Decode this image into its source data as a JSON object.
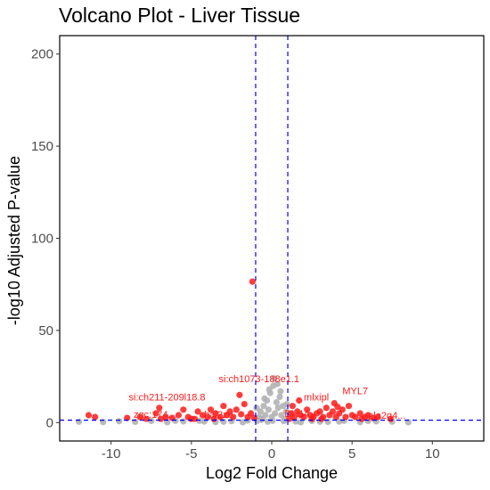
{
  "chart_data": {
    "type": "scatter",
    "title": "Volcano Plot - Liver Tissue",
    "xlabel": "Log2 Fold Change",
    "ylabel": "-log10 Adjusted P-value",
    "xlim": [
      -13.2,
      13.2
    ],
    "ylim": [
      -10,
      210
    ],
    "x_ticks": [
      -10,
      -5,
      0,
      5,
      10
    ],
    "y_ticks": [
      0,
      50,
      100,
      150,
      200
    ],
    "fc_thresholds": [
      -1,
      1
    ],
    "p_threshold": 1.3,
    "grid": false,
    "colors": {
      "significant": "#ff1a1a",
      "not_significant": "#b3b3b3",
      "threshold_line": "#0000ff"
    },
    "series": [
      {
        "status": "significant",
        "points": [
          [
            -1.2,
            76.5
          ],
          [
            -2.0,
            15.0
          ],
          [
            -11.4,
            4.0
          ],
          [
            -11.0,
            3.0
          ],
          [
            -9.0,
            2.5
          ],
          [
            -8.2,
            3.0
          ],
          [
            -7.8,
            2.0
          ],
          [
            -7.2,
            5.0
          ],
          [
            -7.0,
            8.0
          ],
          [
            -6.6,
            3.0
          ],
          [
            -6.2,
            2.5
          ],
          [
            -5.8,
            4.0
          ],
          [
            -5.5,
            7.0
          ],
          [
            -5.2,
            3.0
          ],
          [
            -4.8,
            2.0
          ],
          [
            -4.6,
            6.0
          ],
          [
            -4.3,
            4.0
          ],
          [
            -4.0,
            3.0
          ],
          [
            -3.8,
            7.0
          ],
          [
            -3.5,
            5.0
          ],
          [
            -3.2,
            3.0
          ],
          [
            -3.0,
            9.0
          ],
          [
            -2.8,
            4.0
          ],
          [
            -2.6,
            6.0
          ],
          [
            -2.4,
            3.0
          ],
          [
            -2.2,
            7.0
          ],
          [
            -1.9,
            4.5
          ],
          [
            -1.7,
            10.0
          ],
          [
            -1.5,
            3.0
          ],
          [
            -1.3,
            5.0
          ],
          [
            -1.1,
            2.5
          ],
          [
            -6.9,
            2.0
          ],
          [
            -5.0,
            2.0
          ],
          [
            -3.6,
            2.0
          ],
          [
            1.1,
            2.0
          ],
          [
            1.2,
            5.0
          ],
          [
            1.3,
            9.0
          ],
          [
            1.4,
            3.0
          ],
          [
            1.6,
            6.0
          ],
          [
            1.8,
            4.0
          ],
          [
            2.0,
            3.0
          ],
          [
            2.2,
            7.0
          ],
          [
            2.4,
            4.0
          ],
          [
            2.6,
            3.0
          ],
          [
            2.8,
            5.0
          ],
          [
            3.0,
            6.0
          ],
          [
            3.2,
            3.0
          ],
          [
            3.4,
            8.0
          ],
          [
            3.6,
            4.0
          ],
          [
            3.8,
            6.0
          ],
          [
            4.0,
            3.0
          ],
          [
            4.2,
            5.0
          ],
          [
            4.4,
            7.0
          ],
          [
            4.6,
            3.0
          ],
          [
            4.8,
            9.0
          ],
          [
            5.0,
            4.0
          ],
          [
            5.2,
            3.0
          ],
          [
            5.5,
            5.0
          ],
          [
            5.8,
            3.0
          ],
          [
            6.0,
            4.0
          ],
          [
            6.3,
            2.5
          ],
          [
            6.6,
            3.0
          ],
          [
            7.4,
            2.0
          ],
          [
            3.9,
            10.5
          ],
          [
            4.1,
            8.5
          ],
          [
            1.7,
            12.0
          ],
          [
            2.5,
            2.0
          ],
          [
            3.1,
            2.0
          ],
          [
            5.6,
            2.0
          ]
        ]
      },
      {
        "status": "not_significant",
        "points": [
          [
            -0.9,
            1.0
          ],
          [
            -0.8,
            3.0
          ],
          [
            -0.7,
            6.0
          ],
          [
            -0.6,
            2.0
          ],
          [
            -0.5,
            9.0
          ],
          [
            -0.4,
            4.0
          ],
          [
            -0.3,
            12.0
          ],
          [
            -0.2,
            7.0
          ],
          [
            -0.1,
            16.0
          ],
          [
            0.0,
            3.0
          ],
          [
            0.1,
            20.0
          ],
          [
            0.2,
            5.0
          ],
          [
            0.3,
            11.0
          ],
          [
            0.4,
            8.0
          ],
          [
            0.5,
            14.0
          ],
          [
            0.6,
            4.0
          ],
          [
            0.7,
            9.0
          ],
          [
            0.8,
            2.0
          ],
          [
            0.9,
            6.0
          ],
          [
            -0.95,
            8.0
          ],
          [
            0.95,
            10.0
          ],
          [
            0.15,
            24.0
          ],
          [
            0.35,
            21.0
          ],
          [
            -0.15,
            18.0
          ],
          [
            -0.45,
            13.0
          ],
          [
            0.55,
            17.0
          ],
          [
            0.05,
            1.0
          ],
          [
            -0.25,
            0.5
          ],
          [
            0.75,
            0.8
          ],
          [
            -0.65,
            1.5
          ],
          [
            -12.0,
            0.5
          ],
          [
            -10.5,
            0.3
          ],
          [
            -9.5,
            0.8
          ],
          [
            -8.5,
            0.4
          ],
          [
            -7.5,
            0.9
          ],
          [
            -6.5,
            0.2
          ],
          [
            -5.5,
            0.7
          ],
          [
            -4.5,
            1.0
          ],
          [
            -3.5,
            0.3
          ],
          [
            -2.5,
            0.8
          ],
          [
            -1.5,
            1.1
          ],
          [
            1.5,
            0.6
          ],
          [
            2.5,
            0.9
          ],
          [
            3.5,
            0.4
          ],
          [
            4.5,
            1.0
          ],
          [
            5.5,
            0.3
          ],
          [
            6.5,
            0.7
          ],
          [
            7.5,
            0.5
          ],
          [
            8.5,
            0.2
          ],
          [
            -3.0,
            0.5
          ],
          [
            3.0,
            0.5
          ],
          [
            -6.0,
            1.0
          ],
          [
            6.0,
            0.9
          ],
          [
            -1.8,
            0.2
          ],
          [
            1.8,
            0.2
          ],
          [
            -4.2,
            0.6
          ],
          [
            4.2,
            0.6
          ]
        ]
      }
    ],
    "annotations": [
      {
        "text": "si:ch1073-188e1.1",
        "x": -3.3,
        "y": 22.0,
        "color": "#ff1a1a"
      },
      {
        "text": "si:ch211-209l18.8",
        "x": -8.9,
        "y": 12.0,
        "color": "#ff1a1a"
      },
      {
        "text": "mlxipl",
        "x": 2.0,
        "y": 12.0,
        "color": "#ff1a1a"
      },
      {
        "text": "MYL7",
        "x": 4.4,
        "y": 15.5,
        "color": "#ff1a1a"
      },
      {
        "text": "zgc:174...",
        "x": -8.6,
        "y": 2.5,
        "color": "#ff1a1a"
      },
      {
        "text": "hal2ze",
        "x": -4.2,
        "y": 2.5,
        "color": "#ff1a1a"
      },
      {
        "text": "DH14",
        "x": 0.8,
        "y": 3.0,
        "color": "#ff1a1a"
      },
      {
        "text": "pla2g4...",
        "x": 6.0,
        "y": 2.0,
        "color": "#ff1a1a"
      }
    ]
  }
}
